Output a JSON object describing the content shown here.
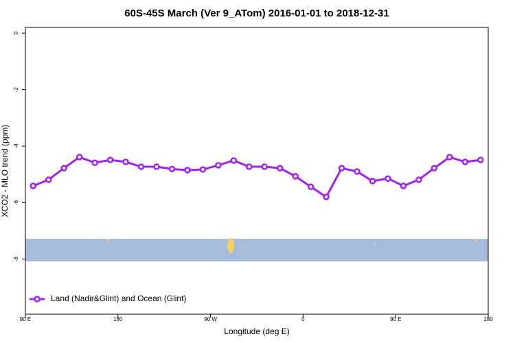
{
  "chart_data": {
    "type": "line",
    "title": "60S-45S March (Ver 9_ATom)   2016-01-01 to 2018-12-31",
    "xlabel": "Longitude (deg E)",
    "ylabel": "XCO2 - MLO trend (ppm)",
    "x": [
      97.5,
      112.5,
      127.5,
      142.5,
      157.5,
      172.5,
      187.5,
      202.5,
      217.5,
      232.5,
      247.5,
      262.5,
      277.5,
      292.5,
      307.5,
      322.5,
      337.5,
      352.5,
      367.5,
      382.5,
      397.5,
      412.5,
      427.5,
      442.5,
      457.5,
      472.5,
      487.5,
      502.5,
      517.5,
      532.5
    ],
    "series": [
      {
        "name": "Land (Nadir&Glint) and Ocean (Glint)",
        "color": "#a020f0",
        "values": [
          -5.41,
          -5.19,
          -4.78,
          -4.39,
          -4.59,
          -4.49,
          -4.56,
          -4.73,
          -4.73,
          -4.81,
          -4.85,
          -4.83,
          -4.68,
          -4.51,
          -4.73,
          -4.73,
          -4.78,
          -5.07,
          -5.44,
          -5.8,
          -4.78,
          -4.9,
          -5.24,
          -5.15,
          -5.41,
          -5.19,
          -4.78,
          -4.39,
          -4.56,
          -4.49
        ]
      }
    ],
    "xlim": [
      90,
      540
    ],
    "xticks": [
      {
        "value": 90,
        "label": "90 E"
      },
      {
        "value": 180,
        "label": "180"
      },
      {
        "value": 270,
        "label": "90 W"
      },
      {
        "value": 360,
        "label": "0"
      },
      {
        "value": 450,
        "label": "90 E"
      },
      {
        "value": 540,
        "label": "180"
      }
    ],
    "ylim": [
      -9.95,
      0.2
    ],
    "yticks": [
      0,
      -2,
      -4,
      -6,
      -8
    ],
    "legend": "bottom-left"
  }
}
